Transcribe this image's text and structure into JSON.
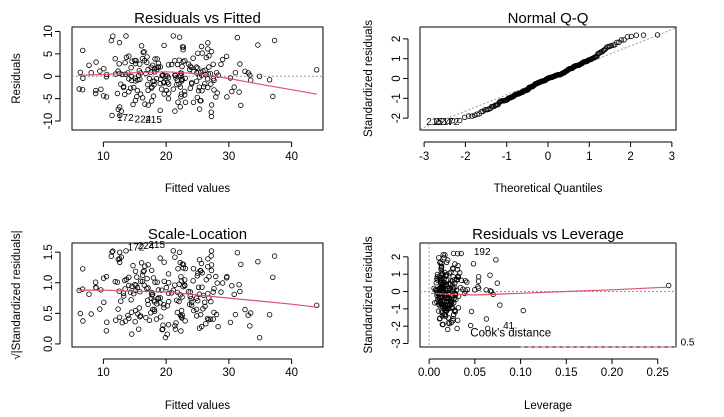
{
  "chart_data": [
    {
      "type": "scatter",
      "title": "Residuals vs Fitted",
      "xlabel": "Fitted values",
      "ylabel": "Residuals",
      "xlim": [
        5,
        45
      ],
      "ylim": [
        -12,
        11
      ],
      "xticks": [
        10,
        20,
        30,
        40
      ],
      "yticks": [
        -10,
        -5,
        0,
        5,
        10
      ],
      "reference_line": {
        "y": 0,
        "style": "dotted"
      },
      "smooth": {
        "x": [
          6,
          10,
          15,
          20,
          25,
          30,
          35,
          40,
          44
        ],
        "y": [
          0.2,
          0.4,
          0.8,
          1.0,
          0.6,
          -0.5,
          -1.8,
          -3.0,
          -4.0
        ]
      },
      "labels": [
        {
          "text": "172",
          "x": 13.5,
          "y": -10.0
        },
        {
          "text": "224",
          "x": 16.3,
          "y": -10.3
        },
        {
          "text": "215",
          "x": 18.0,
          "y": -10.4
        }
      ]
    },
    {
      "type": "scatter",
      "title": "Normal Q-Q",
      "xlabel": "Theoretical Quantiles",
      "ylabel": "Standardized residuals",
      "xlim": [
        -3.1,
        3.1
      ],
      "ylim": [
        -2.6,
        2.6
      ],
      "xticks": [
        -3,
        -2,
        -1,
        0,
        1,
        2,
        3
      ],
      "yticks": [
        -2,
        -1,
        0,
        1,
        2
      ],
      "reference_line": {
        "from": [
          -3.1,
          -2.55
        ],
        "to": [
          3.1,
          2.55
        ],
        "style": "dotted"
      },
      "labels": [
        {
          "text": "215",
          "x": -2.75,
          "y": -2.35
        },
        {
          "text": "224",
          "x": -2.55,
          "y": -2.35
        },
        {
          "text": "172",
          "x": -2.35,
          "y": -2.35
        }
      ]
    },
    {
      "type": "scatter",
      "title": "Scale-Location",
      "xlabel": "Fitted values",
      "ylabel": "√|Standardized residuals|",
      "xlim": [
        5,
        45
      ],
      "ylim": [
        -0.05,
        1.65
      ],
      "xticks": [
        10,
        20,
        30,
        40
      ],
      "yticks": [
        0.0,
        0.5,
        1.0,
        1.5
      ],
      "smooth": {
        "x": [
          6,
          10,
          15,
          20,
          25,
          30,
          35,
          40,
          44
        ],
        "y": [
          0.88,
          0.88,
          0.86,
          0.85,
          0.8,
          0.75,
          0.7,
          0.65,
          0.6
        ]
      },
      "labels": [
        {
          "text": "172",
          "x": 15.2,
          "y": 1.53
        },
        {
          "text": "224",
          "x": 16.8,
          "y": 1.55
        },
        {
          "text": "215",
          "x": 18.5,
          "y": 1.57
        }
      ]
    },
    {
      "type": "scatter",
      "title": "Residuals vs Leverage",
      "xlabel": "Leverage",
      "ylabel": "Standardized residuals",
      "xlim": [
        -0.01,
        0.27
      ],
      "ylim": [
        -3.2,
        2.8
      ],
      "xticks": [
        0.0,
        0.05,
        0.1,
        0.15,
        0.2,
        0.25
      ],
      "xtick_labels": [
        "0.00",
        "0.05",
        "0.10",
        "0.15",
        "0.20",
        "0.25"
      ],
      "yticks": [
        -3,
        -2,
        -1,
        0,
        1,
        2
      ],
      "smooth": {
        "x": [
          0.002,
          0.02,
          0.05,
          0.1,
          0.15,
          0.2,
          0.26
        ],
        "y": [
          -0.1,
          -0.15,
          -0.2,
          -0.1,
          0.0,
          0.1,
          0.25
        ]
      },
      "cooks_distance": {
        "label": "Cook's distance",
        "level_label": "0.5",
        "x": [
          0.1,
          0.15,
          0.2,
          0.25,
          0.27
        ],
        "y": [
          -3.2,
          -3.2,
          -3.2,
          -3.2,
          -3.2
        ]
      },
      "labels": [
        {
          "text": "192",
          "x": 0.058,
          "y": 2.1
        },
        {
          "text": "41",
          "x": 0.087,
          "y": -2.15
        },
        {
          "text": "Cook's distance",
          "x": 0.045,
          "y": -2.6
        },
        {
          "text": "0.5",
          "x": 0.275,
          "y": -3.1
        }
      ]
    }
  ]
}
